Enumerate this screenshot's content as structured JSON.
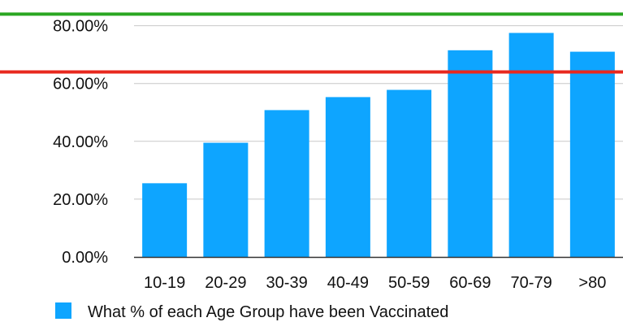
{
  "chart_data": {
    "type": "bar",
    "categories": [
      "10-19",
      "20-29",
      "30-39",
      "40-49",
      "50-59",
      "60-69",
      "70-79",
      ">80"
    ],
    "series": [
      {
        "name": "What % of each Age Group have been Vaccinated",
        "values": [
          25.5,
          39.5,
          50.8,
          55.3,
          57.8,
          71.5,
          77.5,
          71.0
        ],
        "color": "#0ea5ff"
      }
    ],
    "y_ticks": [
      "0.00%",
      "20.00%",
      "40.00%",
      "60.00%",
      "80.00%"
    ],
    "ylim": [
      0,
      80
    ],
    "grid": true,
    "reference_lines": [
      {
        "value": 84,
        "color": "#2aa622"
      },
      {
        "value": 64,
        "color": "#e8281e"
      }
    ],
    "legend": {
      "position": "bottom",
      "label": "What % of each Age Group have been Vaccinated",
      "color": "#0ea5ff"
    }
  }
}
